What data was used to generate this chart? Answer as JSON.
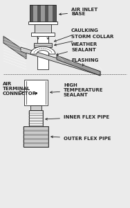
{
  "bg_color": "#ebebeb",
  "line_color": "#222222",
  "white": "#ffffff",
  "gray_light": "#cccccc",
  "gray_mid": "#999999",
  "gray_dark": "#555555",
  "labels": {
    "air_inlet_base": "AIR INLET\nBASE",
    "caulking": "CAULKING",
    "storm_collar": "STORM COLLAR",
    "weather_sealant": "WEATHER\nSEALANT",
    "flashing": "FLASHING",
    "air_terminal": "AIR\nTERMINAL\nCONNECTOR",
    "high_temp": "HIGH\nTEMPERATURE\nSEALANT",
    "inner_flex": "INNER FLEX PIPE",
    "outer_flex": "OUTER FLEX PIPE"
  },
  "font_size": 5.0,
  "lw": 0.6
}
